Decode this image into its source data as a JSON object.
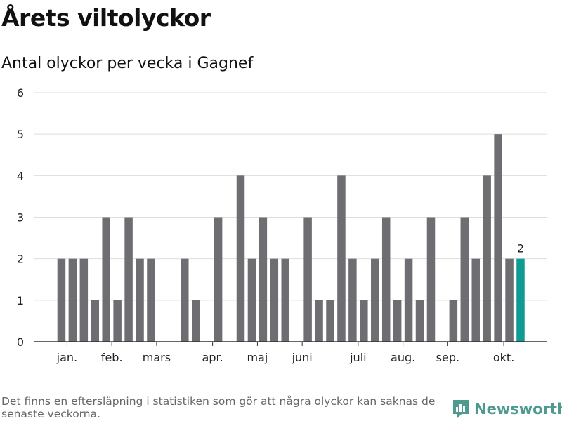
{
  "chart_data": {
    "type": "bar",
    "title": "Årets viltolyckor",
    "subtitle": "Antal olyckor per vecka i Gagnef",
    "ylim": [
      0,
      6
    ],
    "yticks": [
      0,
      1,
      2,
      3,
      4,
      5,
      6
    ],
    "grid": true,
    "x_week_start": 1,
    "values": [
      2,
      2,
      2,
      1,
      3,
      1,
      3,
      2,
      2,
      0,
      0,
      2,
      1,
      0,
      3,
      0,
      4,
      2,
      3,
      2,
      2,
      0,
      3,
      1,
      1,
      4,
      2,
      1,
      2,
      3,
      1,
      2,
      1,
      3,
      0,
      1,
      3,
      2,
      4,
      5,
      2,
      2
    ],
    "highlight_index": 41,
    "highlight_label": "2",
    "month_labels": [
      {
        "label": "jan.",
        "week": 1.5
      },
      {
        "label": "feb.",
        "week": 5.5
      },
      {
        "label": "mars",
        "week": 9.5
      },
      {
        "label": "apr.",
        "week": 14.5
      },
      {
        "label": "maj",
        "week": 18.5
      },
      {
        "label": "juni",
        "week": 22.5
      },
      {
        "label": "juli",
        "week": 27.5
      },
      {
        "label": "aug.",
        "week": 31.5
      },
      {
        "label": "sep.",
        "week": 35.5
      },
      {
        "label": "okt.",
        "week": 40.5
      }
    ],
    "colors": {
      "bar": "#6e6d72",
      "highlight": "#109a94",
      "grid": "#dddddd",
      "axis": "#333333"
    }
  },
  "footnote": "Det finns en eftersläpning i statistiken som gör att några olyckor kan saknas de senaste veckorna.",
  "brand": {
    "name": "Newsworthy",
    "icon": "newsworthy-logo-icon"
  }
}
